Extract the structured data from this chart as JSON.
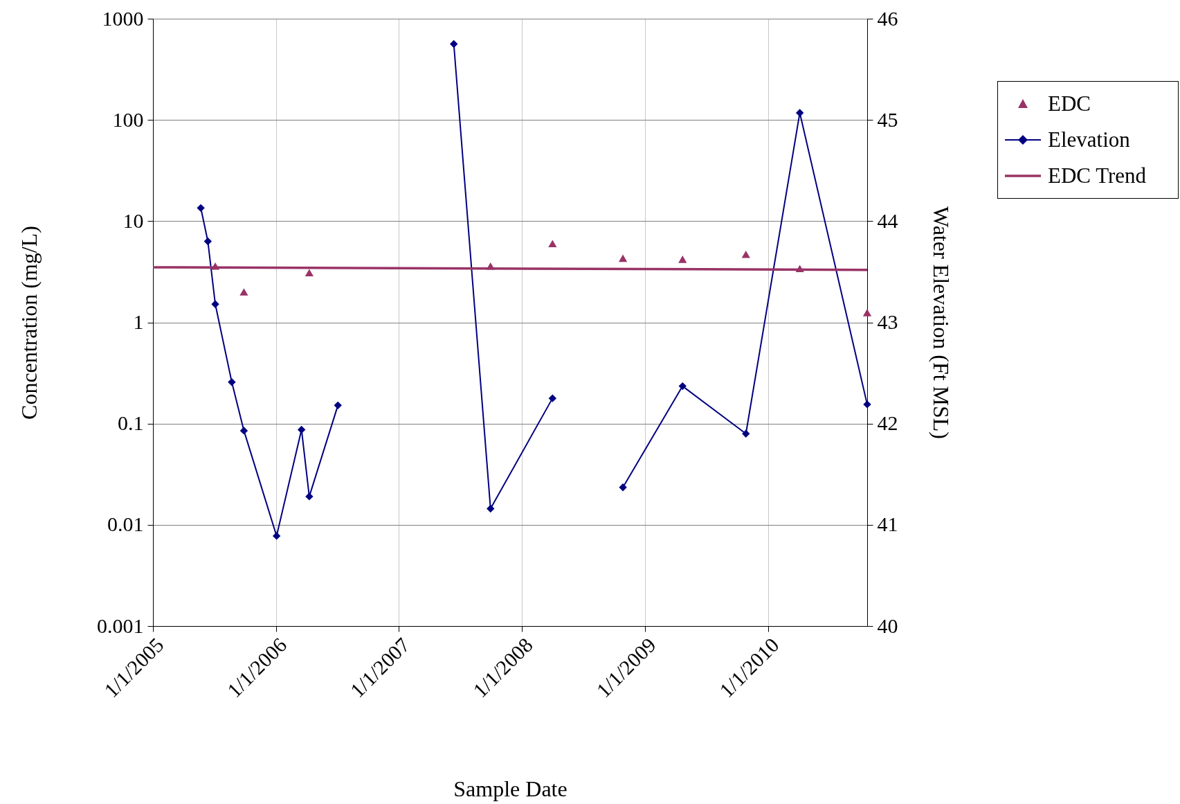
{
  "chart_data": {
    "type": "line",
    "xlabel": "Sample Date",
    "ylabel": "Concentration (mg/L)",
    "y2label": "Water Elevation (Ft MSL)",
    "xlim": [
      "2005-01-01",
      "2010-10-22"
    ],
    "xticks": [
      {
        "value": "2005-01-01",
        "label": "1/1/2005"
      },
      {
        "value": "2006-01-01",
        "label": "1/1/2006"
      },
      {
        "value": "2007-01-01",
        "label": "1/1/2007"
      },
      {
        "value": "2008-01-01",
        "label": "1/1/2008"
      },
      {
        "value": "2009-01-01",
        "label": "1/1/2009"
      },
      {
        "value": "2010-01-01",
        "label": "1/1/2010"
      }
    ],
    "ylim": [
      0.001,
      1000
    ],
    "yticks": [
      0.001,
      0.01,
      0.1,
      1,
      10,
      100,
      1000
    ],
    "log": "y",
    "y2lim": [
      40,
      46
    ],
    "y2ticks": [
      40,
      41,
      42,
      43,
      44,
      45,
      46
    ],
    "grid": true,
    "legend": "top right",
    "series": [
      {
        "name": "EDC",
        "type": "scatter",
        "marker": "triangle",
        "color": "#993366",
        "x": [
          "2005-07-05",
          "2005-09-28",
          "2006-04-10",
          "2007-09-30",
          "2008-04-01",
          "2008-10-27",
          "2009-04-22",
          "2009-10-27",
          "2010-04-05",
          "2010-10-22"
        ],
        "values": [
          3.6,
          2.0,
          3.1,
          3.6,
          6.0,
          4.3,
          4.2,
          4.7,
          3.4,
          1.25
        ]
      },
      {
        "name": "Elevation",
        "type": "line",
        "marker": "diamond",
        "axis": "y2",
        "color": "#000080",
        "x": [
          "2005-05-23",
          "2005-06-13",
          "2005-07-05",
          "2005-08-23",
          "2005-09-28",
          "2006-01-03",
          "2006-03-18",
          "2006-04-10",
          "2006-07-04",
          "2006-12-01",
          "2007-06-13",
          "2007-09-30",
          "2008-04-01",
          "2008-07-01",
          "2008-10-27",
          "2009-04-22",
          "2009-10-27",
          "2010-04-05",
          "2010-10-22"
        ],
        "values": [
          44.13,
          43.8,
          43.18,
          42.41,
          41.93,
          40.89,
          41.94,
          41.28,
          42.18,
          null,
          45.75,
          41.16,
          42.25,
          null,
          41.37,
          42.37,
          41.9,
          45.07,
          42.19
        ]
      },
      {
        "name": "EDC Trend",
        "color": "#993366",
        "x": [
          "2005-01-01",
          "2010-10-22"
        ],
        "values": [
          3.5,
          3.3
        ]
      }
    ]
  }
}
